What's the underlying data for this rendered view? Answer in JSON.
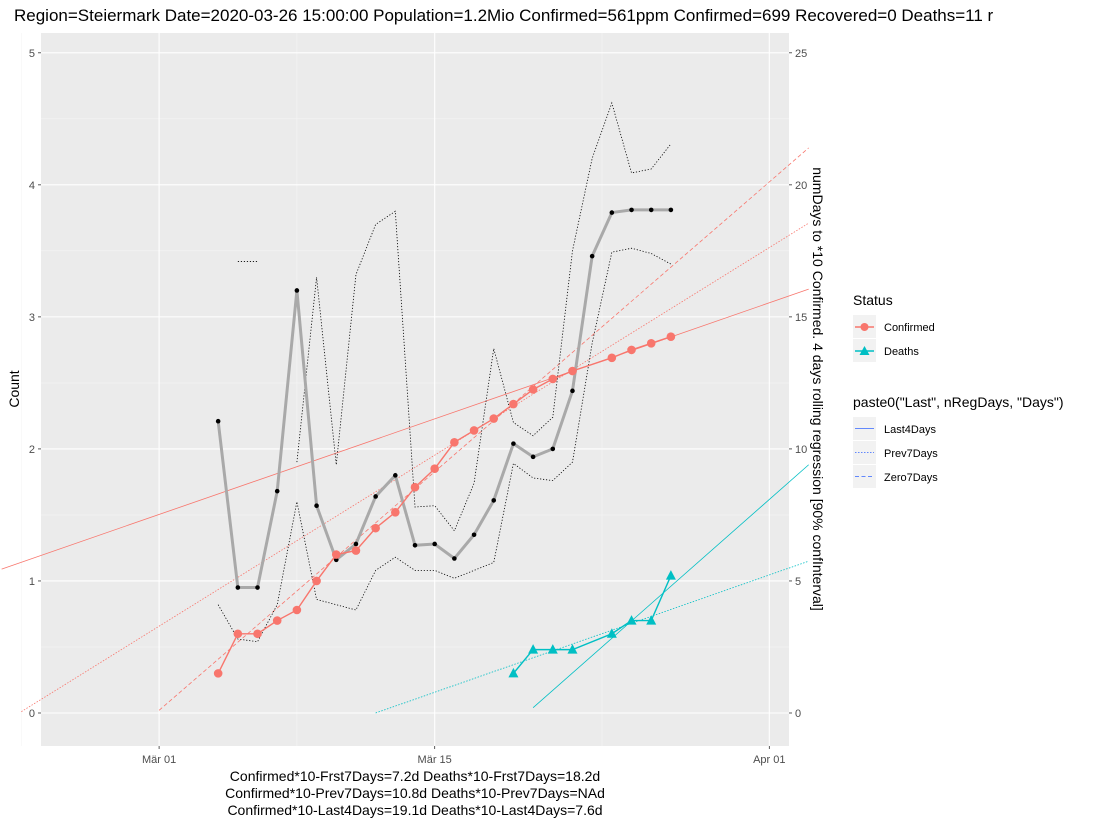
{
  "chart_data": {
    "type": "line",
    "title": "Region=Steiermark Date=2020-03-26 15:00:00  Population=1.2Mio Confirmed=561ppm  Confirmed=699  Recovered=0 Deaths=11  r",
    "ylabel": "Count",
    "y2label": "numDays to *10 Confirmed. 4 days rolling regression [90% confInterval]",
    "x_range": [
      "2020-02-24",
      "2020-04-02"
    ],
    "ylim": [
      -0.25,
      5.15
    ],
    "y2lim": [
      -1.25,
      25.75
    ],
    "y_ticks": [
      {
        "value": 0,
        "label": "0"
      },
      {
        "value": 1,
        "label": "1"
      },
      {
        "value": 2,
        "label": "2"
      },
      {
        "value": 3,
        "label": "3"
      },
      {
        "value": 4,
        "label": "4"
      },
      {
        "value": 5,
        "label": "5"
      }
    ],
    "y2_ticks": [
      {
        "value": 0,
        "label": "0"
      },
      {
        "value": 5,
        "label": "5"
      },
      {
        "value": 10,
        "label": "10"
      },
      {
        "value": 15,
        "label": "15"
      },
      {
        "value": 20,
        "label": "20"
      },
      {
        "value": 25,
        "label": "25"
      }
    ],
    "x_ticks": [
      {
        "value": "2020-03-01",
        "label": "Mär 01"
      },
      {
        "value": "2020-03-15",
        "label": "Mär 15"
      },
      {
        "value": "2020-04-01",
        "label": "Apr 01"
      }
    ],
    "grid": true,
    "legend_position": "right",
    "series": [
      {
        "name": "Confirmed",
        "marker": "circle",
        "color": "#F8766D",
        "x": [
          "2020-03-04",
          "2020-03-05",
          "2020-03-06",
          "2020-03-07",
          "2020-03-08",
          "2020-03-09",
          "2020-03-10",
          "2020-03-11",
          "2020-03-12",
          "2020-03-13",
          "2020-03-14",
          "2020-03-15",
          "2020-03-16",
          "2020-03-17",
          "2020-03-18",
          "2020-03-19",
          "2020-03-20",
          "2020-03-21",
          "2020-03-22",
          "2020-03-24",
          "2020-03-25",
          "2020-03-26",
          "2020-03-27"
        ],
        "y": [
          0.3,
          0.6,
          0.6,
          0.7,
          0.78,
          1.0,
          1.2,
          1.23,
          1.4,
          1.52,
          1.71,
          1.85,
          2.05,
          2.14,
          2.23,
          2.34,
          2.45,
          2.53,
          2.59,
          2.69,
          2.75,
          2.8,
          2.85
        ]
      },
      {
        "name": "Deaths",
        "marker": "triangle",
        "color": "#00BFC4",
        "x": [
          "2020-03-19",
          "2020-03-20",
          "2020-03-21",
          "2020-03-22",
          "2020-03-24",
          "2020-03-25",
          "2020-03-26",
          "2020-03-27"
        ],
        "y": [
          0.3,
          0.48,
          0.48,
          0.48,
          0.6,
          0.7,
          0.7,
          1.04
        ]
      }
    ],
    "regression_lines": [
      {
        "series": "Confirmed",
        "style": "solid",
        "color": "#F8766D",
        "x": [
          "2020-02-22",
          "2020-04-03"
        ],
        "y": [
          1.09,
          3.21
        ]
      },
      {
        "series": "Confirmed",
        "style": "dotted",
        "color": "#F8766D",
        "x": [
          "2020-02-23",
          "2020-04-03"
        ],
        "y": [
          0.01,
          3.71
        ]
      },
      {
        "series": "Confirmed",
        "style": "dashed",
        "color": "#F8766D",
        "x": [
          "2020-03-01",
          "2020-04-03"
        ],
        "y": [
          0.02,
          4.28
        ]
      },
      {
        "series": "Deaths",
        "style": "solid",
        "color": "#00BFC4",
        "x": [
          "2020-03-20",
          "2020-04-03"
        ],
        "y": [
          0.04,
          1.88
        ]
      },
      {
        "series": "Deaths",
        "style": "dotted",
        "color": "#00BFC4",
        "x": [
          "2020-03-12",
          "2020-04-03"
        ],
        "y": [
          0.0,
          1.15
        ]
      }
    ],
    "rolling_regression_days": {
      "x": [
        "2020-03-04",
        "2020-03-05",
        "2020-03-06",
        "2020-03-07",
        "2020-03-08",
        "2020-03-09",
        "2020-03-10",
        "2020-03-11",
        "2020-03-12",
        "2020-03-13",
        "2020-03-14",
        "2020-03-15",
        "2020-03-16",
        "2020-03-17",
        "2020-03-18",
        "2020-03-19",
        "2020-03-20",
        "2020-03-21",
        "2020-03-22",
        "2020-03-23",
        "2020-03-24",
        "2020-03-25",
        "2020-03-26",
        "2020-03-27"
      ],
      "y": [
        11.05,
        4.75,
        4.75,
        8.4,
        16.0,
        7.85,
        5.8,
        6.4,
        8.2,
        9.0,
        6.35,
        6.4,
        5.85,
        6.75,
        8.05,
        10.2,
        9.7,
        10.0,
        12.2,
        17.3,
        18.95,
        19.05,
        19.05,
        19.05
      ]
    },
    "confidence_interval_days": {
      "upper": {
        "x": [
          "2020-03-04",
          "2020-03-05",
          "2020-03-06",
          "2020-03-07",
          "2020-03-08",
          "2020-03-09",
          "2020-03-10",
          "2020-03-11",
          "2020-03-12",
          "2020-03-13",
          "2020-03-14",
          "2020-03-15",
          "2020-03-16",
          "2020-03-17",
          "2020-03-18",
          "2020-03-19",
          "2020-03-20",
          "2020-03-21",
          "2020-03-22",
          "2020-03-23",
          "2020-03-24",
          "2020-03-25",
          "2020-03-26",
          "2020-03-27"
        ],
        "y": [
          null,
          17.1,
          17.1,
          null,
          9.5,
          16.5,
          9.4,
          16.6,
          18.5,
          19.0,
          7.8,
          7.85,
          6.9,
          8.7,
          13.8,
          11.0,
          10.5,
          11.2,
          17.5,
          21.0,
          23.1,
          20.45,
          20.6,
          21.55
        ]
      },
      "lower": {
        "x": [
          "2020-03-04",
          "2020-03-05",
          "2020-03-06",
          "2020-03-07",
          "2020-03-08",
          "2020-03-09",
          "2020-03-10",
          "2020-03-11",
          "2020-03-12",
          "2020-03-13",
          "2020-03-14",
          "2020-03-15",
          "2020-03-16",
          "2020-03-17",
          "2020-03-18",
          "2020-03-19",
          "2020-03-20",
          "2020-03-21",
          "2020-03-22",
          "2020-03-23",
          "2020-03-24",
          "2020-03-25",
          "2020-03-26",
          "2020-03-27"
        ],
        "y": [
          4.1,
          2.8,
          2.7,
          4.1,
          8.0,
          4.3,
          4.1,
          3.9,
          5.4,
          5.9,
          5.4,
          5.4,
          5.1,
          5.4,
          5.7,
          9.45,
          8.9,
          8.8,
          9.5,
          14.0,
          17.45,
          17.6,
          17.4,
          17.0
        ]
      }
    },
    "legend": {
      "status_title": "Status",
      "status_items": [
        {
          "label": "Confirmed",
          "color": "#F8766D",
          "marker": "circle"
        },
        {
          "label": "Deaths",
          "color": "#00BFC4",
          "marker": "triangle"
        }
      ],
      "linetype_title": "paste0(\"Last\", nRegDays, \"Days\")",
      "linetype_items": [
        {
          "label": "Last4Days",
          "style": "solid"
        },
        {
          "label": "Prev7Days",
          "style": "dotted"
        },
        {
          "label": "Zero7Days",
          "style": "dashed"
        }
      ]
    },
    "footnote": [
      "Confirmed*10-Frst7Days=7.2d  Deaths*10-Frst7Days=18.2d",
      "Confirmed*10-Prev7Days=10.8d  Deaths*10-Prev7Days=NAd",
      "Confirmed*10-Last4Days=19.1d  Deaths*10-Last4Days=7.6d"
    ]
  }
}
